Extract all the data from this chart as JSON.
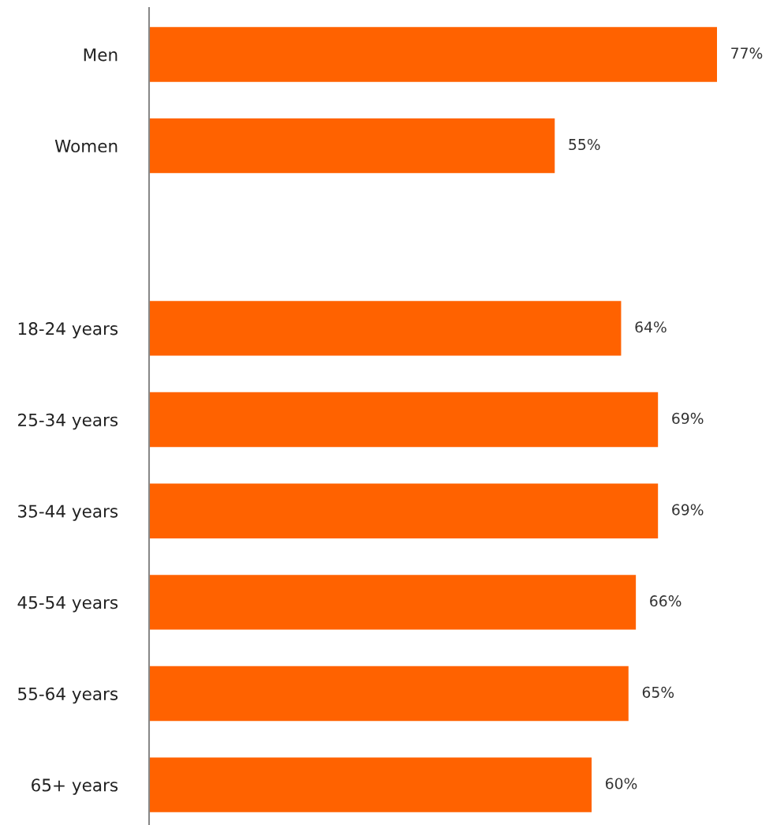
{
  "chart_data": {
    "type": "bar",
    "orientation": "horizontal",
    "categories": [
      "Men",
      "Women",
      null,
      "18-24 years",
      "25-34 years",
      "35-44 years",
      "45-54 years",
      "55-64 years",
      "65+ years"
    ],
    "values": [
      77,
      55,
      null,
      64,
      69,
      69,
      66,
      65,
      60
    ],
    "value_labels": [
      "77%",
      "55%",
      null,
      "64%",
      "69%",
      "69%",
      "66%",
      "65%",
      "60%"
    ],
    "color": "#ff6200",
    "grid": false,
    "legend": false
  }
}
